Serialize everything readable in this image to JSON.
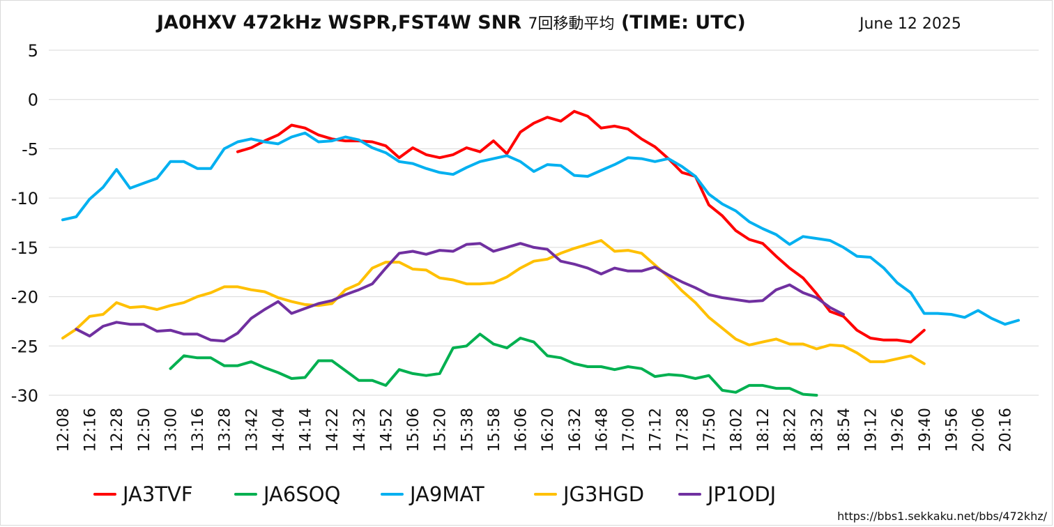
{
  "header": {
    "title_main": "JA0HXV 472kHz WSPR,FST4W SNR",
    "title_sub": "7回移動平均",
    "title_tail": "(TIME: UTC)",
    "date": "June 12 2025"
  },
  "source_url": "https://bbs1.sekkaku.net/bbs/472khz/",
  "chart_data": {
    "type": "line",
    "title": "JA0HXV 472kHz WSPR,FST4W SNR 7回移動平均 (TIME: UTC)",
    "subtitle": "June 12 2025",
    "xlabel": "",
    "ylabel": "",
    "ylim": [
      -30,
      5
    ],
    "yticks": [
      5,
      0,
      -5,
      -10,
      -15,
      -20,
      -25,
      -30
    ],
    "grid": "horizontal",
    "legend_position": "bottom",
    "x_tick_labels": [
      "12:08",
      "12:16",
      "12:28",
      "12:50",
      "13:00",
      "13:16",
      "13:28",
      "13:42",
      "14:04",
      "14:14",
      "14:22",
      "14:32",
      "14:52",
      "15:06",
      "15:20",
      "15:38",
      "15:58",
      "16:06",
      "16:20",
      "16:32",
      "16:48",
      "17:00",
      "17:12",
      "17:28",
      "17:50",
      "18:02",
      "18:12",
      "18:22",
      "18:32",
      "18:54",
      "19:12",
      "19:26",
      "19:40",
      "19:56",
      "20:06",
      "20:16"
    ],
    "series": [
      {
        "name": "JA3TVF",
        "color": "#ff0000",
        "start": 13,
        "values": [
          -5.3,
          -4.9,
          -4.2,
          -3.6,
          -2.6,
          -2.9,
          -3.6,
          -4.0,
          -4.2,
          -4.2,
          -4.3,
          -4.7,
          -5.9,
          -4.9,
          -5.6,
          -5.9,
          -5.6,
          -4.9,
          -5.3,
          -4.2,
          -5.5,
          -3.3,
          -2.4,
          -1.8,
          -2.2,
          -1.2,
          -1.7,
          -2.9,
          -2.7,
          -3.0,
          -4.0,
          -4.8,
          -6.0,
          -7.4,
          -7.8,
          -10.7,
          -11.8,
          -13.3,
          -14.2,
          -14.6,
          -15.9,
          -17.1,
          -18.1,
          -19.7,
          -21.5,
          -22.0,
          -23.4,
          -24.2,
          -24.4,
          -24.4,
          -24.6,
          -23.4
        ]
      },
      {
        "name": "JA6SOQ",
        "color": "#00b050",
        "start": 8,
        "values": [
          -27.3,
          -26.0,
          -26.2,
          -26.2,
          -27.0,
          -27.0,
          -26.6,
          -27.2,
          -27.7,
          -28.3,
          -28.2,
          -26.5,
          -26.5,
          -27.5,
          -28.5,
          -28.5,
          -29.0,
          -27.4,
          -27.8,
          -28.0,
          -27.8,
          -25.2,
          -25.0,
          -23.8,
          -24.8,
          -25.2,
          -24.2,
          -24.6,
          -26.0,
          -26.2,
          -26.8,
          -27.1,
          -27.1,
          -27.4,
          -27.1,
          -27.3,
          -28.1,
          -27.9,
          -28.0,
          -28.3,
          -28.0,
          -29.5,
          -29.7,
          -29.0,
          -29.0,
          -29.3,
          -29.3,
          -29.9,
          -30.0
        ]
      },
      {
        "name": "JA9MAT",
        "color": "#00b0f0",
        "start": 0,
        "values": [
          -12.2,
          -11.9,
          -10.1,
          -8.9,
          -7.1,
          -9.0,
          -8.5,
          -8.0,
          -6.3,
          -6.3,
          -7.0,
          -7.0,
          -5.0,
          -4.3,
          -4.0,
          -4.3,
          -4.5,
          -3.8,
          -3.4,
          -4.3,
          -4.2,
          -3.8,
          -4.1,
          -4.9,
          -5.4,
          -6.3,
          -6.5,
          -7.0,
          -7.4,
          -7.6,
          -6.9,
          -6.3,
          -6.0,
          -5.7,
          -6.3,
          -7.3,
          -6.6,
          -6.7,
          -7.7,
          -7.8,
          -7.2,
          -6.6,
          -5.9,
          -6.0,
          -6.3,
          -6.0,
          -6.8,
          -7.8,
          -9.6,
          -10.6,
          -11.3,
          -12.4,
          -13.1,
          -13.7,
          -14.7,
          -13.9,
          -14.1,
          -14.3,
          -15.0,
          -15.9,
          -16.0,
          -17.1,
          -18.6,
          -19.6,
          -21.7,
          -21.7,
          -21.8,
          -22.1,
          -21.4,
          -22.2,
          -22.8,
          -22.4
        ]
      },
      {
        "name": "JG3HGD",
        "color": "#ffc000",
        "start": 0,
        "values": [
          -24.2,
          -23.3,
          -22.0,
          -21.8,
          -20.6,
          -21.1,
          -21.0,
          -21.3,
          -20.9,
          -20.6,
          -20.0,
          -19.6,
          -19.0,
          -19.0,
          -19.3,
          -19.5,
          -20.1,
          -20.5,
          -20.8,
          -20.9,
          -20.7,
          -19.3,
          -18.7,
          -17.1,
          -16.5,
          -16.5,
          -17.2,
          -17.3,
          -18.1,
          -18.3,
          -18.7,
          -18.7,
          -18.6,
          -18.0,
          -17.1,
          -16.4,
          -16.2,
          -15.6,
          -15.1,
          -14.7,
          -14.3,
          -15.4,
          -15.3,
          -15.6,
          -16.8,
          -18.0,
          -19.4,
          -20.6,
          -22.1,
          -23.2,
          -24.3,
          -24.9,
          -24.6,
          -24.3,
          -24.8,
          -24.8,
          -25.3,
          -24.9,
          -25.0,
          -25.7,
          -26.6,
          -26.6,
          -26.3,
          -26.0,
          -26.8
        ]
      },
      {
        "name": "JP1ODJ",
        "color": "#7030a0",
        "start": 1,
        "values": [
          -23.3,
          -24.0,
          -23.0,
          -22.6,
          -22.8,
          -22.8,
          -23.5,
          -23.4,
          -23.8,
          -23.8,
          -24.4,
          -24.5,
          -23.7,
          -22.2,
          -21.3,
          -20.5,
          -21.7,
          -21.2,
          -20.7,
          -20.4,
          -19.8,
          -19.3,
          -18.7,
          -17.1,
          -15.6,
          -15.4,
          -15.7,
          -15.3,
          -15.4,
          -14.7,
          -14.6,
          -15.4,
          -15.0,
          -14.6,
          -15.0,
          -15.2,
          -16.4,
          -16.7,
          -17.1,
          -17.7,
          -17.1,
          -17.4,
          -17.4,
          -17.0,
          -17.8,
          -18.5,
          -19.1,
          -19.8,
          -20.1,
          -20.3,
          -20.5,
          -20.4,
          -19.3,
          -18.8,
          -19.6,
          -20.1,
          -21.1,
          -21.8
        ]
      }
    ]
  }
}
